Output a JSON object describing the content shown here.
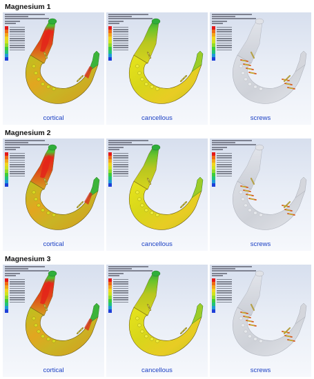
{
  "sections": [
    {
      "title": "Magnesium 1",
      "captions": [
        "cortical",
        "cancellous",
        "screws"
      ]
    },
    {
      "title": "Magnesium 2",
      "captions": [
        "cortical",
        "cancellous",
        "screws"
      ]
    },
    {
      "title": "Magnesium 3",
      "captions": [
        "cortical",
        "cancellous",
        "screws"
      ]
    }
  ],
  "legend_colors": [
    "#e41a1a",
    "#f06a14",
    "#f3a61a",
    "#f2d51d",
    "#cfe31f",
    "#8fdc2a",
    "#3ecc3a",
    "#22c27a",
    "#1f9ad6",
    "#1c3fd8"
  ],
  "panel_kinds": [
    "cortical",
    "cancellous",
    "screws"
  ]
}
